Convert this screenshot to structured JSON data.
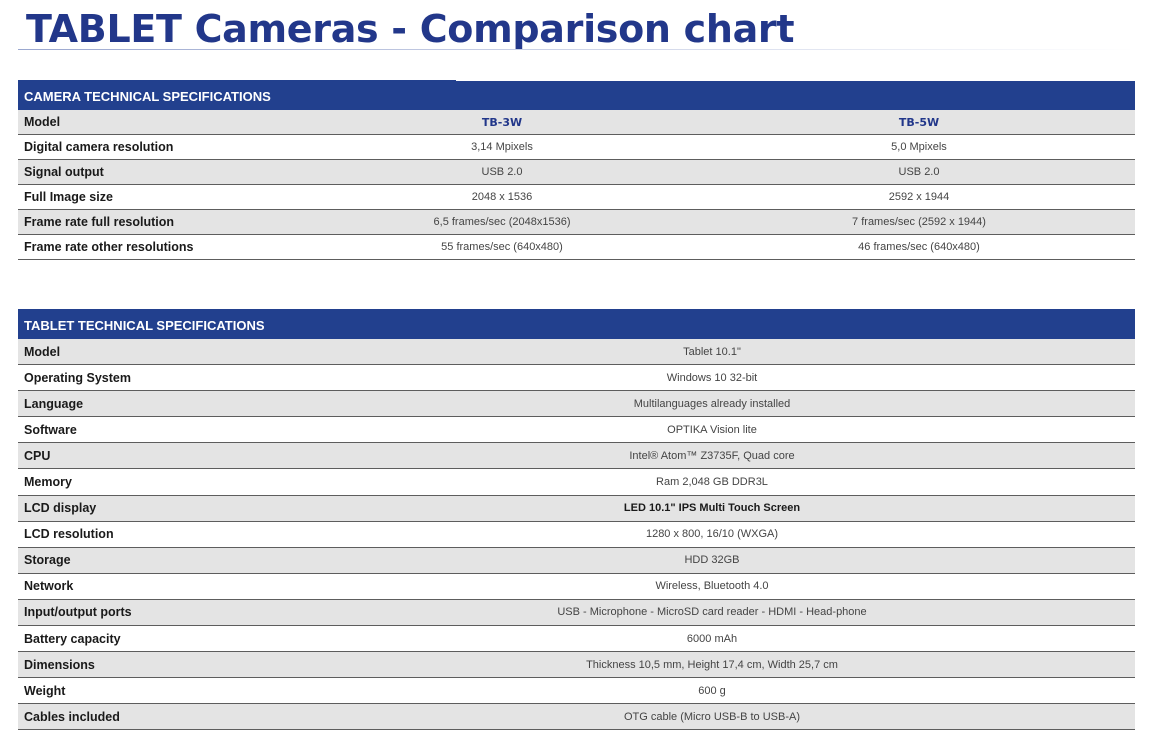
{
  "title": "TABLET Cameras - Comparison chart",
  "camera_specs": {
    "header": "CAMERA TECHNICAL SPECIFICATIONS",
    "model_label": "Model",
    "models": [
      "TB-3W",
      "TB-5W"
    ],
    "rows": [
      {
        "label": "Digital camera resolution",
        "v1": "3,14 Mpixels",
        "v2": "5,0 Mpixels"
      },
      {
        "label": "Signal output",
        "v1": "USB 2.0",
        "v2": "USB 2.0"
      },
      {
        "label": "Full Image size",
        "v1": "2048 x 1536",
        "v2": "2592 x 1944"
      },
      {
        "label": "Frame rate full resolution",
        "v1": "6,5 frames/sec (2048x1536)",
        "v2": "7 frames/sec (2592 x 1944)"
      },
      {
        "label": "Frame rate other resolutions",
        "v1": "55 frames/sec (640x480)",
        "v2": "46 frames/sec (640x480)"
      }
    ]
  },
  "tablet_specs": {
    "header": "TABLET TECHNICAL SPECIFICATIONS",
    "rows": [
      {
        "label": "Model",
        "value": "Tablet 10.1\""
      },
      {
        "label": "Operating System",
        "value": "Windows 10 32-bit"
      },
      {
        "label": "Language",
        "value": "Multilanguages already installed"
      },
      {
        "label": "Software",
        "value": "OPTIKA Vision lite"
      },
      {
        "label": "CPU",
        "value": "Intel® Atom™ Z3735F, Quad core"
      },
      {
        "label": "Memory",
        "value": "Ram 2,048 GB DDR3L"
      },
      {
        "label": "LCD display",
        "value": "LED 10.1\" IPS Multi Touch Screen"
      },
      {
        "label": "LCD resolution",
        "value": "1280 x 800, 16/10 (WXGA)"
      },
      {
        "label": "Storage",
        "value": "HDD 32GB"
      },
      {
        "label": "Network",
        "value": "Wireless, Bluetooth 4.0"
      },
      {
        "label": "Input/output ports",
        "value": "USB - Microphone - MicroSD card reader - HDMI - Head-phone"
      },
      {
        "label": "Battery capacity",
        "value": "6000 mAh"
      },
      {
        "label": "Dimensions",
        "value": "Thickness 10,5 mm, Height 17,4 cm, Width 25,7 cm"
      },
      {
        "label": "Weight",
        "value": "600 g"
      },
      {
        "label": "Cables included",
        "value": "OTG cable (Micro USB-B to USB-A)"
      }
    ]
  }
}
